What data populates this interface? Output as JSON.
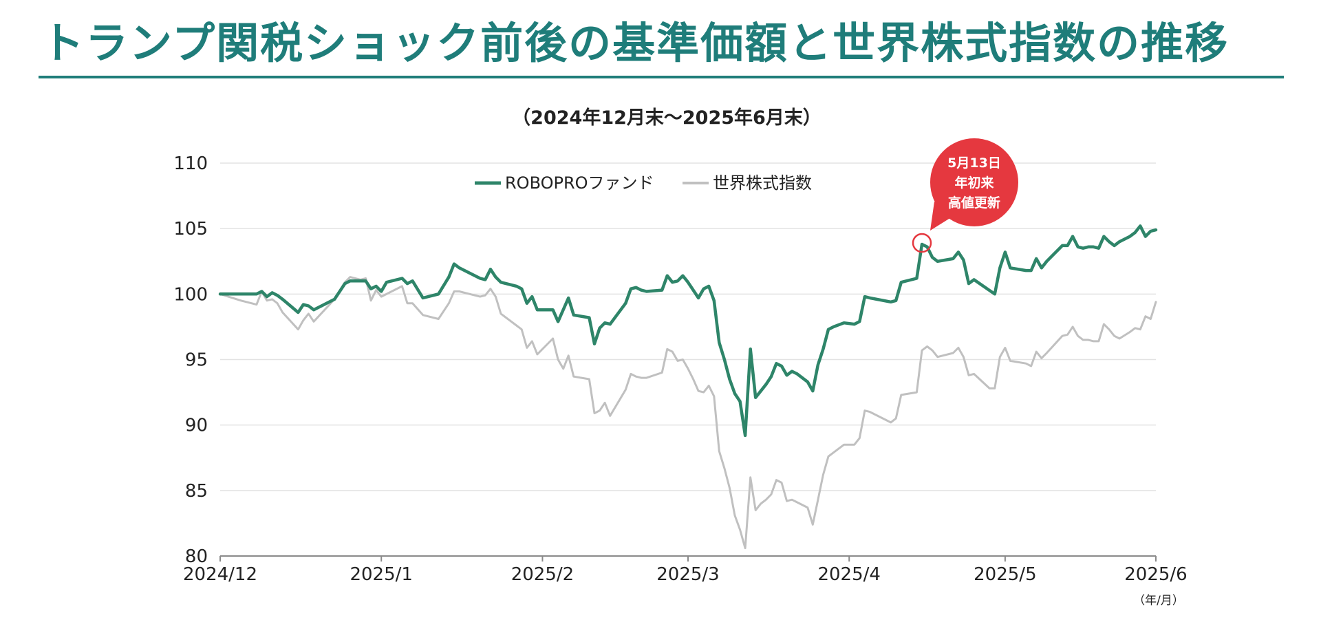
{
  "page": {
    "title": "トランプ関税ショック前後の基準価額と世界株式指数の推移"
  },
  "chart_data": {
    "type": "line",
    "subtitle": "（2024年12月末〜2025年6月末）",
    "unit_label": "（年/月）",
    "ylim": [
      80,
      110
    ],
    "yticks": [
      80,
      85,
      90,
      95,
      100,
      105,
      110
    ],
    "xlim": [
      0,
      180
    ],
    "xtick_labels": [
      {
        "label": "2024/12",
        "x": 0
      },
      {
        "label": "2025/1",
        "x": 31
      },
      {
        "label": "2025/2",
        "x": 62
      },
      {
        "label": "2025/3",
        "x": 90
      },
      {
        "label": "2025/4",
        "x": 121
      },
      {
        "label": "2025/5",
        "x": 151
      },
      {
        "label": "2025/6",
        "x": 180
      }
    ],
    "series": [
      {
        "name": "ROBOPROファンド",
        "color": "#2e8569",
        "points": [
          [
            0,
            100
          ],
          [
            7,
            100
          ],
          [
            8,
            100.2
          ],
          [
            9,
            99.8
          ],
          [
            10,
            100.1
          ],
          [
            11,
            99.9
          ],
          [
            12,
            99.6
          ],
          [
            15,
            98.6
          ],
          [
            16,
            99.2
          ],
          [
            17,
            99.1
          ],
          [
            18,
            98.8
          ],
          [
            22,
            99.6
          ],
          [
            24,
            100.8
          ],
          [
            25,
            101
          ],
          [
            28,
            101
          ],
          [
            29,
            100.4
          ],
          [
            30,
            100.6
          ],
          [
            31,
            100.2
          ],
          [
            32,
            100.9
          ],
          [
            35,
            101.2
          ],
          [
            36,
            100.8
          ],
          [
            37,
            101
          ],
          [
            39,
            99.7
          ],
          [
            42,
            100
          ],
          [
            44,
            101.3
          ],
          [
            45,
            102.3
          ],
          [
            46,
            102
          ],
          [
            48,
            101.6
          ],
          [
            50,
            101.2
          ],
          [
            51,
            101.1
          ],
          [
            52,
            101.9
          ],
          [
            53,
            101.3
          ],
          [
            54,
            100.9
          ],
          [
            57,
            100.6
          ],
          [
            58,
            100.4
          ],
          [
            59,
            99.3
          ],
          [
            60,
            99.8
          ],
          [
            61,
            98.8
          ],
          [
            64,
            98.8
          ],
          [
            65,
            97.9
          ],
          [
            67,
            99.7
          ],
          [
            68,
            98.4
          ],
          [
            71,
            98.2
          ],
          [
            72,
            96.2
          ],
          [
            73,
            97.4
          ],
          [
            74,
            97.8
          ],
          [
            75,
            97.7
          ],
          [
            78,
            99.3
          ],
          [
            79,
            100.4
          ],
          [
            80,
            100.5
          ],
          [
            81,
            100.3
          ],
          [
            82,
            100.2
          ],
          [
            85,
            100.3
          ],
          [
            86,
            101.4
          ],
          [
            87,
            100.9
          ],
          [
            88,
            101
          ],
          [
            89,
            101.4
          ],
          [
            90,
            100.9
          ],
          [
            91,
            100.3
          ],
          [
            92,
            99.7
          ],
          [
            93,
            100.4
          ],
          [
            94,
            100.6
          ],
          [
            95,
            99.5
          ],
          [
            96,
            96.3
          ],
          [
            97,
            95
          ],
          [
            98,
            93.5
          ],
          [
            99,
            92.4
          ],
          [
            100,
            91.8
          ],
          [
            101,
            89.2
          ],
          [
            102,
            95.8
          ],
          [
            103,
            92.1
          ],
          [
            104,
            92.6
          ],
          [
            105,
            93.1
          ],
          [
            106,
            93.7
          ],
          [
            107,
            94.7
          ],
          [
            108,
            94.5
          ],
          [
            109,
            93.8
          ],
          [
            110,
            94.1
          ],
          [
            111,
            93.9
          ],
          [
            113,
            93.3
          ],
          [
            114,
            92.6
          ],
          [
            115,
            94.6
          ],
          [
            116,
            95.8
          ],
          [
            117,
            97.3
          ],
          [
            118,
            97.5
          ],
          [
            120,
            97.8
          ],
          [
            122,
            97.7
          ],
          [
            123,
            97.9
          ],
          [
            124,
            99.8
          ],
          [
            125,
            99.7
          ],
          [
            129,
            99.4
          ],
          [
            130,
            99.5
          ],
          [
            131,
            100.9
          ],
          [
            134,
            101.2
          ],
          [
            135,
            103.8
          ],
          [
            136,
            103.6
          ],
          [
            137,
            102.8
          ],
          [
            138,
            102.5
          ],
          [
            141,
            102.7
          ],
          [
            142,
            103.2
          ],
          [
            143,
            102.6
          ],
          [
            144,
            100.8
          ],
          [
            145,
            101.1
          ],
          [
            149,
            100
          ],
          [
            150,
            102
          ],
          [
            151,
            103.2
          ],
          [
            152,
            102
          ],
          [
            155,
            101.8
          ],
          [
            156,
            101.8
          ],
          [
            157,
            102.7
          ],
          [
            158,
            102
          ],
          [
            159,
            102.5
          ],
          [
            162,
            103.7
          ],
          [
            163,
            103.7
          ],
          [
            164,
            104.4
          ],
          [
            165,
            103.6
          ],
          [
            166,
            103.5
          ],
          [
            167,
            103.6
          ],
          [
            168,
            103.6
          ],
          [
            169,
            103.5
          ],
          [
            170,
            104.4
          ],
          [
            171,
            104
          ],
          [
            172,
            103.7
          ],
          [
            173,
            104
          ],
          [
            175,
            104.4
          ],
          [
            176,
            104.7
          ],
          [
            177,
            105.2
          ],
          [
            178,
            104.4
          ],
          [
            179,
            104.8
          ],
          [
            180,
            104.9
          ]
        ]
      },
      {
        "name": "世界株式指数",
        "color": "#c0c0c0",
        "points": [
          [
            0,
            100
          ],
          [
            4,
            99.5
          ],
          [
            7,
            99.2
          ],
          [
            8,
            100.2
          ],
          [
            9,
            99.5
          ],
          [
            10,
            99.6
          ],
          [
            11,
            99.3
          ],
          [
            12,
            98.6
          ],
          [
            15,
            97.3
          ],
          [
            16,
            98
          ],
          [
            17,
            98.5
          ],
          [
            18,
            97.9
          ],
          [
            22,
            99.6
          ],
          [
            24,
            100.9
          ],
          [
            25,
            101.3
          ],
          [
            27,
            101.1
          ],
          [
            28,
            101.2
          ],
          [
            29,
            99.5
          ],
          [
            30,
            100.3
          ],
          [
            31,
            99.8
          ],
          [
            35,
            100.6
          ],
          [
            36,
            99.3
          ],
          [
            37,
            99.3
          ],
          [
            39,
            98.4
          ],
          [
            42,
            98.1
          ],
          [
            44,
            99.3
          ],
          [
            45,
            100.2
          ],
          [
            46,
            100.2
          ],
          [
            48,
            100
          ],
          [
            50,
            99.8
          ],
          [
            51,
            99.9
          ],
          [
            52,
            100.4
          ],
          [
            53,
            99.8
          ],
          [
            54,
            98.5
          ],
          [
            57,
            97.6
          ],
          [
            58,
            97.3
          ],
          [
            59,
            95.9
          ],
          [
            60,
            96.4
          ],
          [
            61,
            95.4
          ],
          [
            64,
            96.6
          ],
          [
            65,
            95
          ],
          [
            66,
            94.3
          ],
          [
            67,
            95.3
          ],
          [
            68,
            93.7
          ],
          [
            71,
            93.5
          ],
          [
            72,
            90.9
          ],
          [
            73,
            91.1
          ],
          [
            74,
            91.7
          ],
          [
            75,
            90.7
          ],
          [
            78,
            92.7
          ],
          [
            79,
            93.9
          ],
          [
            80,
            93.7
          ],
          [
            81,
            93.6
          ],
          [
            82,
            93.6
          ],
          [
            85,
            94
          ],
          [
            86,
            95.8
          ],
          [
            87,
            95.6
          ],
          [
            88,
            94.9
          ],
          [
            89,
            95
          ],
          [
            90,
            94.3
          ],
          [
            91,
            93.5
          ],
          [
            92,
            92.6
          ],
          [
            93,
            92.5
          ],
          [
            94,
            93
          ],
          [
            95,
            92.2
          ],
          [
            96,
            88
          ],
          [
            97,
            86.7
          ],
          [
            98,
            85.2
          ],
          [
            99,
            83.1
          ],
          [
            100,
            82
          ],
          [
            101,
            80.6
          ],
          [
            102,
            86
          ],
          [
            103,
            83.5
          ],
          [
            104,
            84
          ],
          [
            105,
            84.3
          ],
          [
            106,
            84.7
          ],
          [
            107,
            85.8
          ],
          [
            108,
            85.6
          ],
          [
            109,
            84.2
          ],
          [
            110,
            84.3
          ],
          [
            111,
            84.1
          ],
          [
            113,
            83.7
          ],
          [
            114,
            82.4
          ],
          [
            115,
            84.3
          ],
          [
            116,
            86.2
          ],
          [
            117,
            87.6
          ],
          [
            118,
            87.9
          ],
          [
            120,
            88.5
          ],
          [
            122,
            88.5
          ],
          [
            123,
            89
          ],
          [
            124,
            91.1
          ],
          [
            125,
            91
          ],
          [
            129,
            90.2
          ],
          [
            130,
            90.5
          ],
          [
            131,
            92.3
          ],
          [
            134,
            92.5
          ],
          [
            135,
            95.7
          ],
          [
            136,
            96
          ],
          [
            137,
            95.7
          ],
          [
            138,
            95.2
          ],
          [
            141,
            95.5
          ],
          [
            142,
            95.9
          ],
          [
            143,
            95.2
          ],
          [
            144,
            93.8
          ],
          [
            145,
            93.9
          ],
          [
            148,
            92.8
          ],
          [
            149,
            92.8
          ],
          [
            150,
            95.2
          ],
          [
            151,
            95.9
          ],
          [
            152,
            94.9
          ],
          [
            155,
            94.7
          ],
          [
            156,
            94.5
          ],
          [
            157,
            95.6
          ],
          [
            158,
            95.1
          ],
          [
            159,
            95.5
          ],
          [
            162,
            96.8
          ],
          [
            163,
            96.9
          ],
          [
            164,
            97.5
          ],
          [
            165,
            96.8
          ],
          [
            166,
            96.5
          ],
          [
            167,
            96.5
          ],
          [
            168,
            96.4
          ],
          [
            169,
            96.4
          ],
          [
            170,
            97.7
          ],
          [
            171,
            97.3
          ],
          [
            172,
            96.8
          ],
          [
            173,
            96.6
          ],
          [
            175,
            97.1
          ],
          [
            176,
            97.4
          ],
          [
            177,
            97.3
          ],
          [
            178,
            98.3
          ],
          [
            179,
            98.1
          ],
          [
            180,
            99.4
          ]
        ]
      }
    ],
    "annotation": {
      "lines": [
        "5月13日",
        "年初来",
        "高値更新"
      ],
      "x": 135,
      "y": 103.8,
      "color": "#e5383f"
    }
  }
}
